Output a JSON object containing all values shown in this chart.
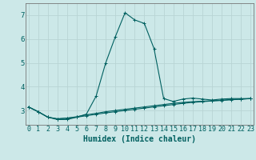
{
  "title": "",
  "xlabel": "Humidex (Indice chaleur)",
  "ylabel": "",
  "background_color": "#cce8e8",
  "grid_color": "#b8d4d4",
  "line_color": "#006060",
  "x_values": [
    0,
    1,
    2,
    3,
    4,
    5,
    6,
    7,
    8,
    9,
    10,
    11,
    12,
    13,
    14,
    15,
    16,
    17,
    18,
    19,
    20,
    21,
    22,
    23
  ],
  "line1_y": [
    3.15,
    2.95,
    2.72,
    2.62,
    2.62,
    2.72,
    2.85,
    3.6,
    5.0,
    6.1,
    7.1,
    6.8,
    6.65,
    5.6,
    3.5,
    3.38,
    3.48,
    3.52,
    3.48,
    3.44,
    3.48,
    3.5,
    3.5,
    3.5
  ],
  "line2_y": [
    3.15,
    2.95,
    2.72,
    2.65,
    2.68,
    2.74,
    2.82,
    2.88,
    2.95,
    3.0,
    3.05,
    3.1,
    3.15,
    3.2,
    3.25,
    3.3,
    3.34,
    3.37,
    3.39,
    3.41,
    3.43,
    3.46,
    3.48,
    3.5
  ],
  "line3_y": [
    3.15,
    2.95,
    2.72,
    2.65,
    2.68,
    2.72,
    2.78,
    2.84,
    2.9,
    2.95,
    3.0,
    3.05,
    3.1,
    3.15,
    3.2,
    3.25,
    3.3,
    3.34,
    3.37,
    3.4,
    3.42,
    3.45,
    3.47,
    3.5
  ],
  "ylim": [
    2.4,
    7.5
  ],
  "yticks": [
    3,
    4,
    5,
    6,
    7
  ],
  "xticks": [
    0,
    1,
    2,
    3,
    4,
    5,
    6,
    7,
    8,
    9,
    10,
    11,
    12,
    13,
    14,
    15,
    16,
    17,
    18,
    19,
    20,
    21,
    22,
    23
  ],
  "xlim": [
    -0.3,
    23.3
  ],
  "font_size": 6.0,
  "xlabel_fontsize": 7.0
}
